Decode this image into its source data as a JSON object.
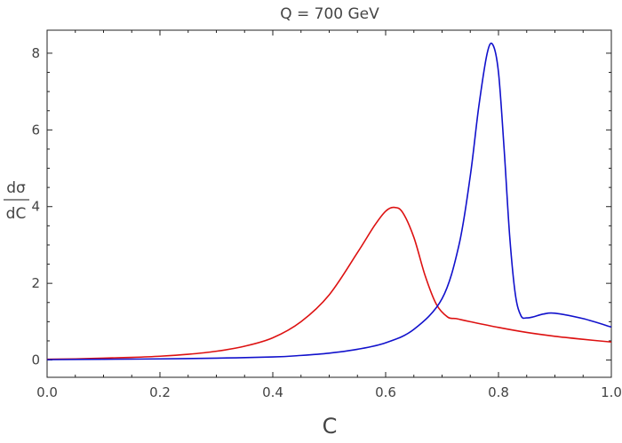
{
  "chart_data": {
    "type": "line",
    "title": "Q = 700 GeV",
    "xlabel": "C",
    "ylabel_num": "dσ",
    "ylabel_den": "dC",
    "xlim": [
      0,
      1
    ],
    "ylim": [
      -0.45,
      8.6
    ],
    "xticks": [
      0.0,
      0.2,
      0.4,
      0.6,
      0.8,
      1.0
    ],
    "xtick_labels": [
      "0.0",
      "0.2",
      "0.4",
      "0.6",
      "0.8",
      "1.0"
    ],
    "yticks": [
      0,
      2,
      4,
      6,
      8
    ],
    "ytick_labels": [
      "0",
      "2",
      "4",
      "6",
      "8"
    ],
    "grid": false,
    "series": [
      {
        "color": "#dd1111",
        "x": [
          0.0,
          0.05,
          0.1,
          0.15,
          0.2,
          0.25,
          0.3,
          0.35,
          0.4,
          0.45,
          0.5,
          0.55,
          0.58,
          0.6,
          0.615,
          0.63,
          0.65,
          0.67,
          0.69,
          0.71,
          0.725,
          0.75,
          0.8,
          0.85,
          0.9,
          0.95,
          1.0
        ],
        "y": [
          0.02,
          0.03,
          0.05,
          0.07,
          0.1,
          0.15,
          0.23,
          0.36,
          0.58,
          1.0,
          1.7,
          2.8,
          3.5,
          3.88,
          3.98,
          3.85,
          3.2,
          2.2,
          1.45,
          1.12,
          1.08,
          1.0,
          0.85,
          0.72,
          0.62,
          0.54,
          0.47
        ]
      },
      {
        "color": "#1111cc",
        "x": [
          0.0,
          0.1,
          0.2,
          0.3,
          0.4,
          0.45,
          0.5,
          0.55,
          0.6,
          0.65,
          0.7,
          0.73,
          0.75,
          0.765,
          0.78,
          0.79,
          0.8,
          0.81,
          0.82,
          0.83,
          0.84,
          0.85,
          0.86,
          0.88,
          0.9,
          0.95,
          1.0
        ],
        "y": [
          0.01,
          0.02,
          0.03,
          0.05,
          0.08,
          0.12,
          0.18,
          0.28,
          0.45,
          0.8,
          1.6,
          3.0,
          4.8,
          6.6,
          8.0,
          8.22,
          7.5,
          5.5,
          3.2,
          1.7,
          1.15,
          1.1,
          1.12,
          1.2,
          1.22,
          1.08,
          0.86
        ]
      }
    ]
  }
}
